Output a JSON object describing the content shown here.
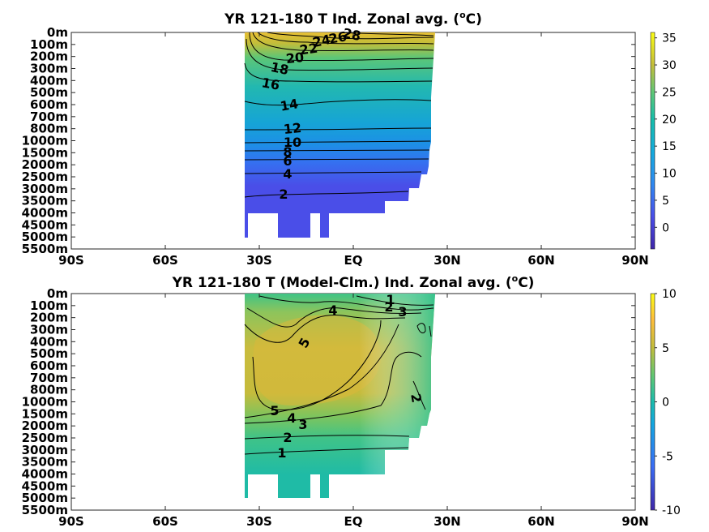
{
  "chart_data": [
    {
      "type": "heatmap",
      "title": "YR 121-180 T Ind. Zonal avg. (°C)",
      "title_main": "YR 121-180 T Ind. Zonal avg. (",
      "title_sup": "o",
      "title_tail": "C)",
      "x_ticks": [
        "90S",
        "60S",
        "30S",
        "EQ",
        "30N",
        "60N",
        "90N"
      ],
      "y_ticks": [
        "0m",
        "100m",
        "200m",
        "300m",
        "400m",
        "500m",
        "600m",
        "700m",
        "800m",
        "1000m",
        "1500m",
        "2000m",
        "2500m",
        "3000m",
        "3500m",
        "4000m",
        "4500m",
        "5000m",
        "5500m"
      ],
      "colorbar": {
        "ticks": [
          "35",
          "30",
          "25",
          "20",
          "15",
          "10",
          "5",
          "0"
        ],
        "values": [
          35,
          30,
          25,
          20,
          15,
          10,
          5,
          0
        ],
        "range": [
          -4,
          36
        ]
      },
      "contours": [
        {
          "label": "2",
          "level": 2,
          "depth_index": 13.0
        },
        {
          "label": "4",
          "level": 4,
          "depth_index": 11.8
        },
        {
          "label": "6",
          "level": 6,
          "depth_index": 10.8
        },
        {
          "label": "8",
          "level": 8,
          "depth_index": 10.0
        },
        {
          "label": "10",
          "level": 10,
          "depth_index": 9.2
        },
        {
          "label": "12",
          "level": 12,
          "depth_index": 8.0
        },
        {
          "label": "14",
          "level": 14,
          "depth_index": 6.0
        },
        {
          "label": "16",
          "level": 16,
          "depth_index": 4.4
        },
        {
          "label": "18",
          "level": 18,
          "depth_index": 3.0
        },
        {
          "label": "20",
          "level": 20,
          "depth_index": 2.2
        },
        {
          "label": "22",
          "level": 22,
          "depth_index": 1.6
        },
        {
          "label": "24",
          "level": 24,
          "depth_index": 1.0
        },
        {
          "label": "26",
          "level": 26,
          "depth_index": 0.6
        },
        {
          "label": "28",
          "level": 28,
          "depth_index": 0.2
        }
      ]
    },
    {
      "type": "heatmap",
      "title": "YR 121-180 T (Model-Clm.) Ind. Zonal avg. (°C)",
      "title_main": "YR 121-180 T (Model-Clm.) Ind. Zonal avg. (",
      "title_sup": "o",
      "title_tail": "C)",
      "x_ticks": [
        "90S",
        "60S",
        "30S",
        "EQ",
        "30N",
        "60N",
        "90N"
      ],
      "y_ticks": [
        "0m",
        "100m",
        "200m",
        "300m",
        "400m",
        "500m",
        "600m",
        "700m",
        "800m",
        "1000m",
        "1500m",
        "2000m",
        "2500m",
        "3000m",
        "3500m",
        "4000m",
        "4500m",
        "5000m",
        "5500m"
      ],
      "colorbar": {
        "ticks": [
          "10",
          "5",
          "0",
          "-5",
          "-10"
        ],
        "values": [
          10,
          5,
          0,
          -5,
          -10
        ],
        "range": [
          -10,
          10
        ]
      },
      "contours": [
        {
          "label": "1",
          "level": 1
        },
        {
          "label": "2",
          "level": 2
        },
        {
          "label": "3",
          "level": 3
        },
        {
          "label": "4",
          "level": 4
        },
        {
          "label": "5",
          "level": 5
        }
      ]
    }
  ]
}
